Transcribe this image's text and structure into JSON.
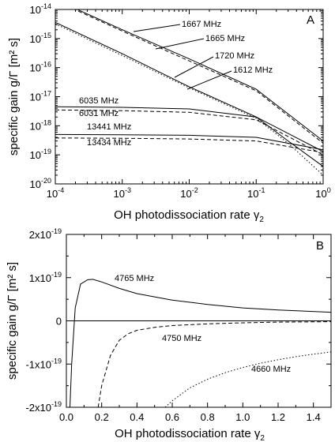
{
  "chart_data": [
    {
      "type": "line",
      "panel": "A",
      "xlabel_main": "OH photodissociation rate γ",
      "xlabel_sub": "2",
      "ylabel": "specific gain g/Γ [m² s]",
      "xscale": "log",
      "yscale": "log",
      "xlim": [
        0.0001,
        1
      ],
      "ylim": [
        1e-20,
        1e-14
      ],
      "x_tick_labels": [
        {
          "base": "10",
          "exp": "-4"
        },
        {
          "base": "10",
          "exp": "-3"
        },
        {
          "base": "10",
          "exp": "-2"
        },
        {
          "base": "10",
          "exp": "-1"
        },
        {
          "base": "10",
          "exp": "0"
        }
      ],
      "y_tick_labels": [
        {
          "base": "10",
          "exp": "-14"
        },
        {
          "base": "10",
          "exp": "-15"
        },
        {
          "base": "10",
          "exp": "-16"
        },
        {
          "base": "10",
          "exp": "-17"
        },
        {
          "base": "10",
          "exp": "-18"
        },
        {
          "base": "10",
          "exp": "-19"
        },
        {
          "base": "10",
          "exp": "-20"
        }
      ],
      "series": [
        {
          "name": "1667 MHz",
          "style": "solid",
          "x": [
            0.0001,
            0.001,
            0.01,
            0.1,
            1
          ],
          "y": [
            2.2e-14,
            2e-15,
            2e-16,
            1.8e-17,
            3e-19
          ]
        },
        {
          "name": "1665 MHz",
          "style": "dash",
          "x": [
            0.0001,
            0.001,
            0.01,
            0.1,
            1
          ],
          "y": [
            2e-14,
            1.8e-15,
            1.7e-16,
            1.6e-17,
            2.5e-19
          ]
        },
        {
          "name": "1720 MHz",
          "style": "solid",
          "x": [
            0.0001,
            0.001,
            0.01,
            0.1,
            0.3,
            1
          ],
          "y": [
            3.6e-15,
            3e-16,
            2.2e-17,
            2e-18,
            3e-19,
            4e-20
          ]
        },
        {
          "name": "1612 MHz",
          "style": "dot",
          "x": [
            0.0001,
            0.001,
            0.01,
            0.1,
            0.3,
            1
          ],
          "y": [
            3.2e-15,
            2.6e-16,
            2e-17,
            1.8e-18,
            2.5e-19,
            2e-20
          ]
        },
        {
          "name": "6035 MHz",
          "style": "solid",
          "x": [
            0.0001,
            0.001,
            0.01,
            0.1,
            1
          ],
          "y": [
            4.5e-18,
            4.3e-18,
            3.8e-18,
            2e-18,
            1.3e-19
          ]
        },
        {
          "name": "6031 MHz",
          "style": "dash",
          "x": [
            0.0001,
            0.001,
            0.01,
            0.1,
            1
          ],
          "y": [
            3.5e-18,
            3.3e-18,
            2.9e-18,
            1.6e-18,
            1e-19
          ]
        },
        {
          "name": "13441 MHz",
          "style": "solid",
          "x": [
            0.0001,
            0.001,
            0.01,
            0.1,
            1
          ],
          "y": [
            5e-19,
            4.9e-19,
            4.7e-19,
            4e-19,
            1.5e-19
          ]
        },
        {
          "name": "13434 MHz",
          "style": "dash",
          "x": [
            0.0001,
            0.001,
            0.01,
            0.1,
            1
          ],
          "y": [
            3.8e-19,
            3.7e-19,
            3.5e-19,
            3e-19,
            1.2e-19
          ]
        }
      ]
    },
    {
      "type": "line",
      "panel": "B",
      "xlabel_main": "OH photodissociation rate γ",
      "xlabel_sub": "2",
      "ylabel": "specific gain g/Γ [m² s]",
      "xlim": [
        0,
        1.5
      ],
      "ylim": [
        -2e-19,
        2e-19
      ],
      "x_tick_labels": [
        "0.0",
        "0.2",
        "0.4",
        "0.6",
        "0.8",
        "1.0",
        "1.2",
        "1.4"
      ],
      "y_tick_labels": [
        {
          "value": 2e-19,
          "base": "2x10",
          "exp": "-19"
        },
        {
          "value": 1e-19,
          "base": "1x10",
          "exp": "-19"
        },
        {
          "value": 0,
          "base": "0",
          "exp": ""
        },
        {
          "value": -1e-19,
          "base": "-1x10",
          "exp": "-19"
        },
        {
          "value": -2e-19,
          "base": "-2x10",
          "exp": "-19"
        }
      ],
      "series": [
        {
          "name": "4765 MHz",
          "style": "solid",
          "x": [
            0.02,
            0.03,
            0.05,
            0.08,
            0.12,
            0.15,
            0.2,
            0.3,
            0.4,
            0.6,
            0.8,
            1.0,
            1.2,
            1.5
          ],
          "y": [
            -2e-19,
            -1e-19,
            3e-20,
            8.5e-20,
            9.5e-20,
            9.6e-20,
            9e-20,
            7.5e-20,
            6.3e-20,
            4.8e-20,
            3.8e-20,
            3e-20,
            2.5e-20,
            2e-20
          ]
        },
        {
          "name": "4750 MHz",
          "style": "dash",
          "x": [
            0.18,
            0.2,
            0.25,
            0.3,
            0.35,
            0.4,
            0.5,
            0.6,
            0.8,
            1.0,
            1.2,
            1.5
          ],
          "y": [
            -2e-19,
            -1.5e-19,
            -8e-20,
            -4.5e-20,
            -3e-20,
            -2.2e-20,
            -1.5e-20,
            -1.1e-20,
            -7e-21,
            -4.5e-21,
            -3e-21,
            -2e-21
          ]
        },
        {
          "name": "4660 MHz",
          "style": "dot",
          "x": [
            0.56,
            0.6,
            0.7,
            0.8,
            0.9,
            1.0,
            1.1,
            1.2,
            1.3,
            1.4,
            1.5
          ],
          "y": [
            -2e-19,
            -1.85e-19,
            -1.55e-19,
            -1.35e-19,
            -1.2e-19,
            -1.08e-19,
            -9.8e-20,
            -9e-20,
            -8.3e-20,
            -7.7e-20,
            -7.2e-20
          ]
        }
      ]
    }
  ],
  "panels": {
    "a": {
      "letter": "A"
    },
    "b": {
      "letter": "B"
    }
  }
}
